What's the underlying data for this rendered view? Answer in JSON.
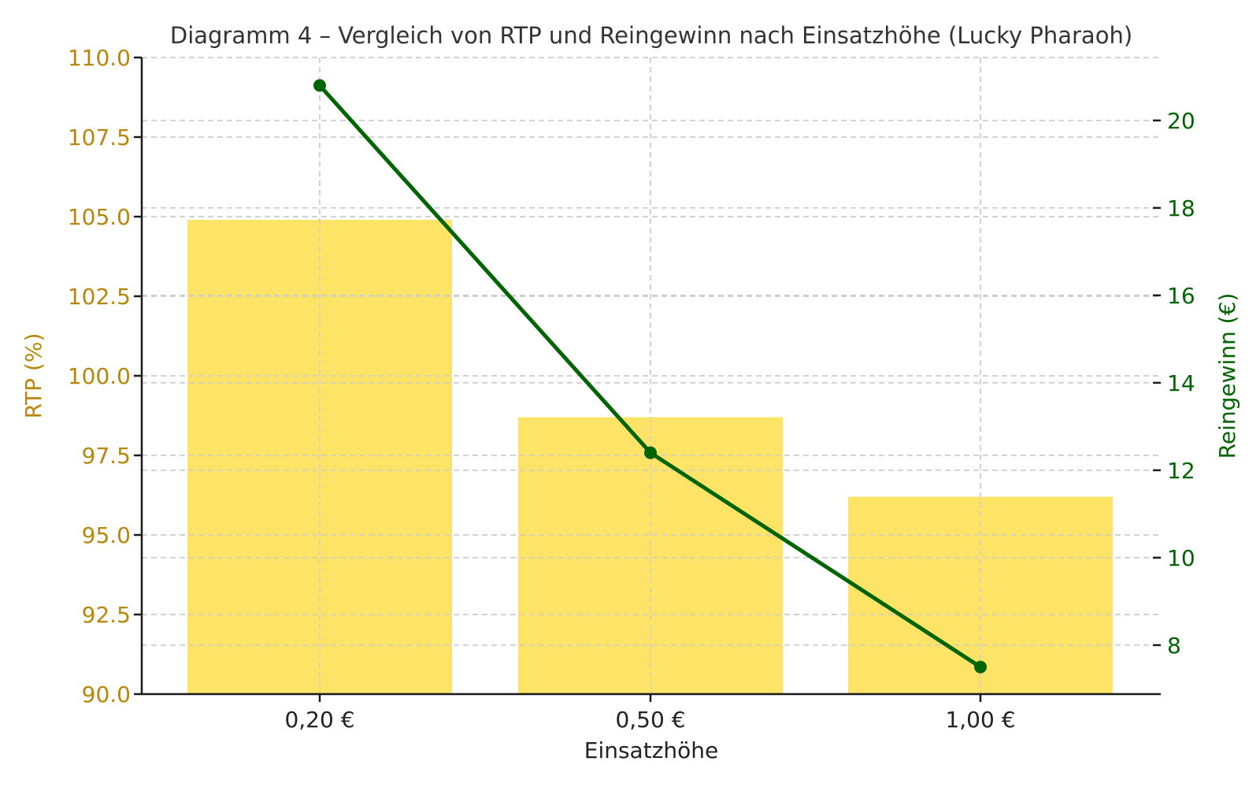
{
  "chart_data": {
    "type": "bar+line",
    "title": "Diagramm 4 – Vergleich von RTP und Reingewinn nach Einsatzhöhe (Lucky Pharaoh)",
    "xlabel": "Einsatzhöhe",
    "categories": [
      "0,20 €",
      "0,50 €",
      "1,00 €"
    ],
    "series": [
      {
        "name": "RTP (%)",
        "type": "bar",
        "axis": "left",
        "values": [
          104.9,
          98.7,
          96.2
        ],
        "color": "#FDE467"
      },
      {
        "name": "Reingewinn (€)",
        "type": "line",
        "axis": "right",
        "values": [
          20.8,
          12.4,
          7.5
        ],
        "color": "#006400",
        "marker": "circle"
      }
    ],
    "left_axis": {
      "label": "RTP (%)",
      "color": "#B8860B",
      "ylim": [
        90.0,
        110.0
      ],
      "ticks": [
        "90.0",
        "92.5",
        "95.0",
        "97.5",
        "100.0",
        "102.5",
        "105.0",
        "107.5",
        "110.0"
      ],
      "tick_values": [
        90.0,
        92.5,
        95.0,
        97.5,
        100.0,
        102.5,
        105.0,
        107.5,
        110.0
      ]
    },
    "right_axis": {
      "label": "Reingewinn (€)",
      "color": "#006400",
      "ylim": [
        6.88,
        21.44
      ],
      "ticks": [
        "8",
        "10",
        "12",
        "14",
        "16",
        "18",
        "20"
      ],
      "tick_values": [
        8,
        10,
        12,
        14,
        16,
        18,
        20
      ]
    },
    "grid": true,
    "legend": null
  }
}
